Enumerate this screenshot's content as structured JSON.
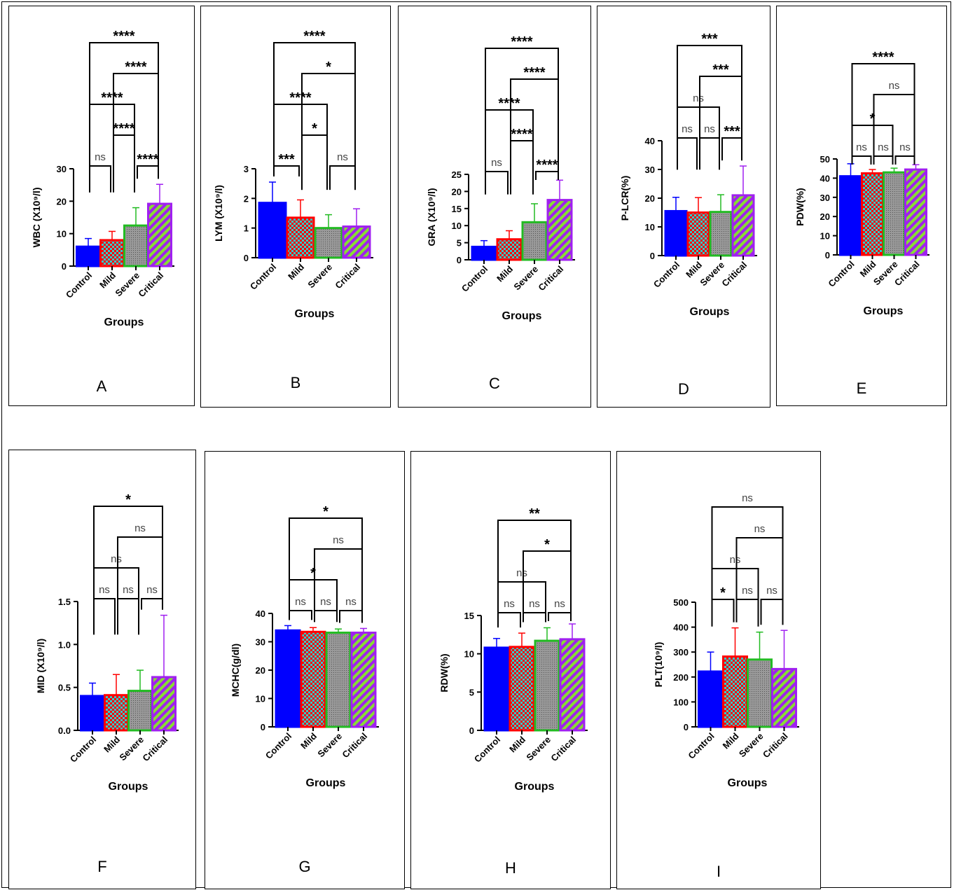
{
  "chart_data": [
    {
      "panel": "A",
      "type": "bar",
      "ylabel": "WBC (X10⁹/l)",
      "xlabel": "Groups",
      "categories": [
        "Control",
        "Mild",
        "Severe",
        "Critical"
      ],
      "values": [
        6,
        8,
        12.5,
        19.2
      ],
      "errors": [
        2.5,
        2.7,
        5.5,
        6.0
      ],
      "ylim": [
        0,
        30
      ],
      "yticks": [
        "0",
        "10",
        "20",
        "30"
      ],
      "comparisons": [
        {
          "from": 0,
          "to": 1,
          "label": "ns"
        },
        {
          "from": 2,
          "to": 3,
          "label": "****"
        },
        {
          "from": 1,
          "to": 2,
          "label": "****"
        },
        {
          "from": 0,
          "to": 2,
          "label": "****"
        },
        {
          "from": 1,
          "to": 3,
          "label": "****"
        },
        {
          "from": 0,
          "to": 3,
          "label": "****"
        }
      ]
    },
    {
      "panel": "B",
      "type": "bar",
      "ylabel": "LYM (X10⁹/l)",
      "xlabel": "Groups",
      "categories": [
        "Control",
        "Mild",
        "Severe",
        "Critical"
      ],
      "values": [
        1.85,
        1.35,
        1.0,
        1.05
      ],
      "errors": [
        0.7,
        0.6,
        0.45,
        0.6
      ],
      "ylim": [
        0,
        3
      ],
      "yticks": [
        "0",
        "1",
        "2",
        "3"
      ],
      "comparisons": [
        {
          "from": 0,
          "to": 1,
          "label": "***"
        },
        {
          "from": 2,
          "to": 3,
          "label": "ns"
        },
        {
          "from": 1,
          "to": 2,
          "label": "*"
        },
        {
          "from": 0,
          "to": 2,
          "label": "****"
        },
        {
          "from": 1,
          "to": 3,
          "label": "*"
        },
        {
          "from": 0,
          "to": 3,
          "label": "****"
        }
      ]
    },
    {
      "panel": "C",
      "type": "bar",
      "ylabel": "GRA (X10⁹/l)",
      "xlabel": "Groups",
      "categories": [
        "Control",
        "Mild",
        "Severe",
        "Critical"
      ],
      "values": [
        3.8,
        6,
        11,
        17.5
      ],
      "errors": [
        1.8,
        2.5,
        5.4,
        5.8
      ],
      "ylim": [
        0,
        25
      ],
      "yticks": [
        "0",
        "5",
        "10",
        "15",
        "20",
        "25"
      ],
      "comparisons": [
        {
          "from": 0,
          "to": 1,
          "label": "ns"
        },
        {
          "from": 2,
          "to": 3,
          "label": "****"
        },
        {
          "from": 1,
          "to": 2,
          "label": "****"
        },
        {
          "from": 0,
          "to": 2,
          "label": "****"
        },
        {
          "from": 1,
          "to": 3,
          "label": "****"
        },
        {
          "from": 0,
          "to": 3,
          "label": "****"
        }
      ]
    },
    {
      "panel": "D",
      "type": "bar",
      "ylabel": "P-LCR(%)",
      "xlabel": "Groups",
      "categories": [
        "Control",
        "Mild",
        "Severe",
        "Critical"
      ],
      "values": [
        15.5,
        15,
        15.2,
        21
      ],
      "errors": [
        4.8,
        5.2,
        6.0,
        10.2
      ],
      "ylim": [
        0,
        40
      ],
      "yticks": [
        "0",
        "10",
        "20",
        "30",
        "40"
      ],
      "comparisons": [
        {
          "from": 0,
          "to": 1,
          "label": "ns"
        },
        {
          "from": 1,
          "to": 2,
          "label": "ns"
        },
        {
          "from": 2,
          "to": 3,
          "label": "***"
        },
        {
          "from": 0,
          "to": 2,
          "label": "ns"
        },
        {
          "from": 1,
          "to": 3,
          "label": "***"
        },
        {
          "from": 0,
          "to": 3,
          "label": "***"
        }
      ]
    },
    {
      "panel": "E",
      "type": "bar",
      "ylabel": "PDW(%)",
      "xlabel": "Groups",
      "categories": [
        "Control",
        "Mild",
        "Severe",
        "Critical"
      ],
      "values": [
        41,
        42.5,
        43,
        44.5
      ],
      "errors": [
        6.5,
        2.0,
        2.2,
        2.5
      ],
      "ylim": [
        0,
        50
      ],
      "yticks": [
        "0",
        "10",
        "20",
        "30",
        "40",
        "50"
      ],
      "comparisons": [
        {
          "from": 0,
          "to": 1,
          "label": "ns"
        },
        {
          "from": 1,
          "to": 2,
          "label": "ns"
        },
        {
          "from": 2,
          "to": 3,
          "label": "ns"
        },
        {
          "from": 0,
          "to": 2,
          "label": "*"
        },
        {
          "from": 1,
          "to": 3,
          "label": "ns"
        },
        {
          "from": 0,
          "to": 3,
          "label": "****"
        }
      ]
    },
    {
      "panel": "F",
      "type": "bar",
      "ylabel": "MID (X10⁹/l)",
      "xlabel": "Groups",
      "categories": [
        "Control",
        "Mild",
        "Severe",
        "Critical"
      ],
      "values": [
        0.4,
        0.41,
        0.46,
        0.62
      ],
      "errors": [
        0.15,
        0.24,
        0.24,
        0.72
      ],
      "ylim": [
        0,
        1.5
      ],
      "yticks": [
        "0.0",
        "0.5",
        "1.0",
        "1.5"
      ],
      "comparisons": [
        {
          "from": 0,
          "to": 1,
          "label": "ns"
        },
        {
          "from": 1,
          "to": 2,
          "label": "ns"
        },
        {
          "from": 2,
          "to": 3,
          "label": "ns"
        },
        {
          "from": 0,
          "to": 2,
          "label": "ns"
        },
        {
          "from": 1,
          "to": 3,
          "label": "ns"
        },
        {
          "from": 0,
          "to": 3,
          "label": "*"
        }
      ]
    },
    {
      "panel": "G",
      "type": "bar",
      "ylabel": "MCHC(g/dl)",
      "xlabel": "Groups",
      "categories": [
        "Control",
        "Mild",
        "Severe",
        "Critical"
      ],
      "values": [
        34,
        33.5,
        33.2,
        33.2
      ],
      "errors": [
        1.7,
        1.5,
        1.3,
        1.5
      ],
      "ylim": [
        0,
        40
      ],
      "yticks": [
        "0",
        "10",
        "20",
        "30",
        "40"
      ],
      "comparisons": [
        {
          "from": 0,
          "to": 1,
          "label": "ns"
        },
        {
          "from": 1,
          "to": 2,
          "label": "ns"
        },
        {
          "from": 2,
          "to": 3,
          "label": "ns"
        },
        {
          "from": 0,
          "to": 2,
          "label": "*"
        },
        {
          "from": 1,
          "to": 3,
          "label": "ns"
        },
        {
          "from": 0,
          "to": 3,
          "label": "*"
        }
      ]
    },
    {
      "panel": "H",
      "type": "bar",
      "ylabel": "RDW(%)",
      "xlabel": "Groups",
      "categories": [
        "Control",
        "Mild",
        "Severe",
        "Critical"
      ],
      "values": [
        10.8,
        10.9,
        11.7,
        11.9
      ],
      "errors": [
        1.2,
        1.8,
        1.7,
        2.0
      ],
      "ylim": [
        0,
        15
      ],
      "yticks": [
        "0",
        "5",
        "10",
        "15"
      ],
      "comparisons": [
        {
          "from": 0,
          "to": 1,
          "label": "ns"
        },
        {
          "from": 1,
          "to": 2,
          "label": "ns"
        },
        {
          "from": 2,
          "to": 3,
          "label": "ns"
        },
        {
          "from": 0,
          "to": 2,
          "label": "ns"
        },
        {
          "from": 1,
          "to": 3,
          "label": "*"
        },
        {
          "from": 0,
          "to": 3,
          "label": "**"
        }
      ]
    },
    {
      "panel": "I",
      "type": "bar",
      "ylabel": "PLT(10⁹/l)",
      "xlabel": "Groups",
      "categories": [
        "Control",
        "Mild",
        "Severe",
        "Critical"
      ],
      "values": [
        222,
        282,
        270,
        232
      ],
      "errors": [
        78,
        115,
        110,
        155
      ],
      "ylim": [
        0,
        500
      ],
      "yticks": [
        "0",
        "100",
        "200",
        "300",
        "400",
        "500"
      ],
      "comparisons": [
        {
          "from": 0,
          "to": 1,
          "label": "*"
        },
        {
          "from": 1,
          "to": 2,
          "label": "ns"
        },
        {
          "from": 2,
          "to": 3,
          "label": "ns"
        },
        {
          "from": 0,
          "to": 2,
          "label": "ns"
        },
        {
          "from": 1,
          "to": 3,
          "label": "ns"
        },
        {
          "from": 0,
          "to": 3,
          "label": "ns"
        }
      ]
    }
  ],
  "colors": {
    "control": "#0000ff",
    "mild": "#ff0000",
    "mild_check": "#33cccc",
    "severe": "#22bb22",
    "severe_fill": "#999999",
    "critical": "#a020f0",
    "critical_stripe": "#88dd33"
  }
}
